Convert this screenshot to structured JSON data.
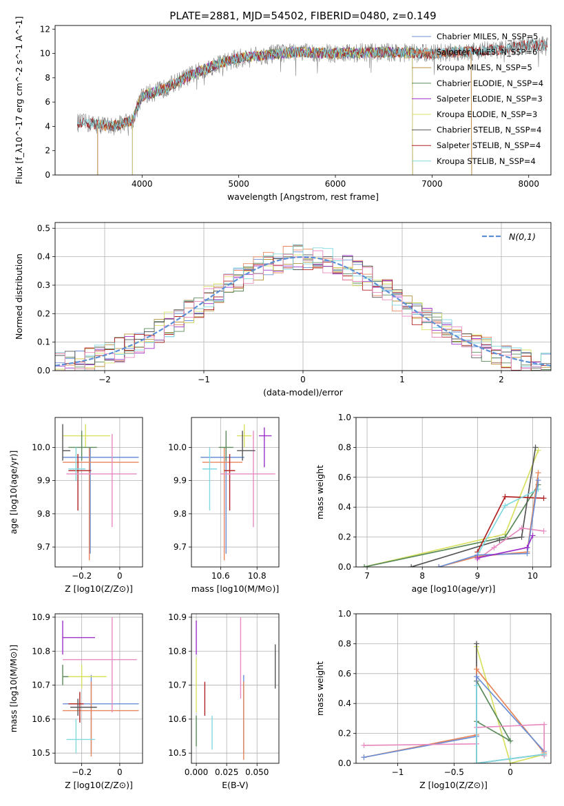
{
  "title": "PLATE=2881, MJD=54502, FIBERID=0480, z=0.149",
  "colors": {
    "chabrier_miles": "#6b8fd6",
    "salpeter_miles": "#e8855a",
    "kroupa_miles": "#b8923a",
    "chabrier_elodie": "#5a8a5a",
    "salpeter_elodie": "#9b30c8",
    "kroupa_elodie": "#d8e060",
    "chabrier_stelib": "#555555",
    "salpeter_stelib": "#b02020",
    "kroupa_stelib": "#80d8e0",
    "pink": "#e88ac0",
    "orange": "#e87a30",
    "gauss": "#5b8fd6"
  },
  "chart_data": [
    {
      "id": "spectrum",
      "type": "line",
      "xlabel": "wavelength [Angstrom, rest frame]",
      "ylabel": "Flux [f_λ10^-17 erg cm^-2 s^-1 A^-1]",
      "xlim": [
        3100,
        8230
      ],
      "ylim": [
        0,
        12.3
      ],
      "xticks": [
        4000,
        5000,
        6000,
        7000,
        8000
      ],
      "yticks": [
        0,
        2,
        4,
        6,
        8,
        10,
        12
      ],
      "legend": [
        {
          "label": "Chabrier MILES, N_SSP=5",
          "color_key": "chabrier_miles"
        },
        {
          "label": "Salpeter MILES, N_SSP=6",
          "color_key": "salpeter_miles"
        },
        {
          "label": "Kroupa MILES, N_SSP=5",
          "color_key": "kroupa_miles"
        },
        {
          "label": "Chabrier ELODIE, N_SSP=4",
          "color_key": "chabrier_elodie"
        },
        {
          "label": "Salpeter ELODIE, N_SSP=3",
          "color_key": "salpeter_elodie"
        },
        {
          "label": "Kroupa ELODIE, N_SSP=3",
          "color_key": "kroupa_elodie"
        },
        {
          "label": "Chabrier STELIB, N_SSP=4",
          "color_key": "chabrier_stelib"
        },
        {
          "label": "Salpeter STELIB, N_SSP=4",
          "color_key": "salpeter_stelib"
        },
        {
          "label": "Kroupa STELIB, N_SSP=4",
          "color_key": "kroupa_stelib"
        }
      ],
      "continuum": [
        [
          3330,
          4.3
        ],
        [
          3500,
          4.2
        ],
        [
          3700,
          4.0
        ],
        [
          3900,
          4.5
        ],
        [
          4000,
          6.5
        ],
        [
          4200,
          7.0
        ],
        [
          4500,
          8.2
        ],
        [
          4800,
          9.2
        ],
        [
          5000,
          9.6
        ],
        [
          5300,
          9.9
        ],
        [
          5600,
          10.1
        ],
        [
          6000,
          10.0
        ],
        [
          6500,
          10.1
        ],
        [
          7000,
          10.0
        ],
        [
          7400,
          10.2
        ],
        [
          7700,
          10.3
        ],
        [
          8000,
          10.7
        ],
        [
          8200,
          10.6
        ]
      ]
    },
    {
      "id": "residuals",
      "type": "line",
      "xlabel": "(data-model)/error",
      "ylabel": "Normed distribution",
      "xlim": [
        -2.5,
        2.5
      ],
      "ylim": [
        0,
        0.52
      ],
      "xticks": [
        -2,
        -1,
        0,
        1,
        2
      ],
      "yticks": [
        0.0,
        0.1,
        0.2,
        0.3,
        0.4,
        0.5
      ],
      "legend_label": "N(0,1)",
      "bin_width": 0.1
    },
    {
      "id": "age_vs_Z",
      "type": "scatter",
      "xlabel": "Z [log10(Z/Z⊙)]",
      "ylabel": "age  [log10(age/yr)]",
      "xlim": [
        -0.34,
        0.12
      ],
      "ylim": [
        9.64,
        10.09
      ],
      "xticks": [
        -0.2,
        0.0
      ],
      "yticks": [
        9.7,
        9.8,
        9.9,
        10.0
      ],
      "points": [
        {
          "x": -0.155,
          "y": 9.97,
          "xlo": -0.3,
          "xhi": 0.1,
          "ylo": 9.68,
          "yhi": 10.0,
          "c": "chabrier_miles"
        },
        {
          "x": -0.16,
          "y": 9.955,
          "xlo": -0.3,
          "xhi": 0.1,
          "ylo": 9.66,
          "yhi": 10.0,
          "c": "salpeter_miles"
        },
        {
          "x": -0.18,
          "y": 10.035,
          "xlo": -0.3,
          "xhi": -0.05,
          "ylo": 10.0,
          "yhi": 10.07,
          "c": "kroupa_elodie"
        },
        {
          "x": -0.2,
          "y": 10.0,
          "xlo": -0.27,
          "xhi": -0.12,
          "ylo": 9.96,
          "yhi": 10.05,
          "c": "chabrier_elodie"
        },
        {
          "x": -0.22,
          "y": 9.93,
          "xlo": -0.27,
          "xhi": -0.15,
          "ylo": 9.81,
          "yhi": 9.98,
          "c": "salpeter_stelib"
        },
        {
          "x": -0.23,
          "y": 9.935,
          "xlo": -0.27,
          "xhi": -0.18,
          "ylo": 9.9,
          "yhi": 10.0,
          "c": "kroupa_stelib"
        },
        {
          "x": -0.04,
          "y": 9.92,
          "xlo": -0.28,
          "xhi": 0.09,
          "ylo": 9.76,
          "yhi": 10.04,
          "c": "pink"
        },
        {
          "x": -0.3,
          "y": 9.99,
          "xlo": -0.3,
          "xhi": -0.26,
          "ylo": 9.96,
          "yhi": 10.07,
          "c": "chabrier_stelib"
        }
      ]
    },
    {
      "id": "age_vs_mass",
      "type": "scatter",
      "xlabel": "mass [log10(M/M⊙)]",
      "ylabel": "",
      "xlim": [
        10.44,
        10.92
      ],
      "ylim": [
        9.64,
        10.09
      ],
      "xticks": [
        10.6,
        10.8
      ],
      "yticks": [
        9.7,
        9.8,
        9.9,
        10.0
      ],
      "points": [
        {
          "x": 10.63,
          "y": 9.97,
          "xlo": 10.49,
          "xhi": 10.73,
          "ylo": 9.68,
          "yhi": 10.0,
          "c": "chabrier_miles"
        },
        {
          "x": 10.62,
          "y": 9.955,
          "xlo": 10.5,
          "xhi": 10.72,
          "ylo": 9.66,
          "yhi": 10.0,
          "c": "salpeter_miles"
        },
        {
          "x": 10.73,
          "y": 10.035,
          "xlo": 10.69,
          "xhi": 10.77,
          "ylo": 10.0,
          "yhi": 10.07,
          "c": "kroupa_elodie"
        },
        {
          "x": 10.63,
          "y": 10.0,
          "xlo": 10.59,
          "xhi": 10.67,
          "ylo": 9.96,
          "yhi": 10.05,
          "c": "chabrier_elodie"
        },
        {
          "x": 10.65,
          "y": 9.93,
          "xlo": 10.62,
          "xhi": 10.68,
          "ylo": 9.81,
          "yhi": 9.98,
          "c": "salpeter_stelib"
        },
        {
          "x": 10.54,
          "y": 9.935,
          "xlo": 10.5,
          "xhi": 10.58,
          "ylo": 9.81,
          "yhi": 10.0,
          "c": "kroupa_stelib"
        },
        {
          "x": 10.78,
          "y": 9.92,
          "xlo": 10.6,
          "xhi": 10.9,
          "ylo": 9.76,
          "yhi": 10.05,
          "c": "pink"
        },
        {
          "x": 10.84,
          "y": 10.035,
          "xlo": 10.81,
          "xhi": 10.88,
          "ylo": 9.94,
          "yhi": 10.06,
          "c": "salpeter_elodie"
        },
        {
          "x": 10.72,
          "y": 9.99,
          "xlo": 10.69,
          "xhi": 10.79,
          "ylo": 9.96,
          "yhi": 10.05,
          "c": "chabrier_stelib"
        }
      ]
    },
    {
      "id": "massweight_vs_age",
      "type": "line",
      "xlabel": "age  [log10(age/yr)]",
      "ylabel": "mass weight",
      "xlim": [
        6.8,
        10.33
      ],
      "ylim": [
        0,
        1.0
      ],
      "xticks": [
        7,
        8,
        9,
        10
      ],
      "yticks": [
        0.0,
        0.2,
        0.4,
        0.6,
        0.8,
        1.0
      ],
      "series": [
        {
          "c": "kroupa_elodie",
          "pts": [
            [
              6.95,
              0.0
            ],
            [
              9.5,
              0.22
            ],
            [
              10.1,
              0.78
            ]
          ]
        },
        {
          "c": "chabrier_elodie",
          "pts": [
            [
              6.95,
              0.0
            ],
            [
              9.5,
              0.2
            ],
            [
              10.1,
              0.55
            ]
          ]
        },
        {
          "c": "chabrier_stelib",
          "pts": [
            [
              7.8,
              0.0
            ],
            [
              9.4,
              0.18
            ],
            [
              9.8,
              0.2
            ],
            [
              10.05,
              0.8
            ]
          ]
        },
        {
          "c": "salpeter_stelib",
          "pts": [
            [
              9.0,
              0.1
            ],
            [
              9.5,
              0.47
            ],
            [
              10.2,
              0.46
            ]
          ]
        },
        {
          "c": "kroupa_stelib",
          "pts": [
            [
              9.0,
              0.08
            ],
            [
              9.5,
              0.41
            ],
            [
              10.1,
              0.52
            ]
          ]
        },
        {
          "c": "pink",
          "pts": [
            [
              9.0,
              0.05
            ],
            [
              9.3,
              0.13
            ],
            [
              9.8,
              0.26
            ],
            [
              10.2,
              0.24
            ]
          ]
        },
        {
          "c": "salpeter_miles",
          "pts": [
            [
              8.3,
              0.0
            ],
            [
              9.0,
              0.07
            ],
            [
              9.9,
              0.1
            ],
            [
              10.1,
              0.63
            ]
          ]
        },
        {
          "c": "chabrier_miles",
          "pts": [
            [
              8.3,
              0.0
            ],
            [
              9.0,
              0.08
            ],
            [
              9.9,
              0.09
            ],
            [
              10.1,
              0.58
            ]
          ]
        },
        {
          "c": "salpeter_elodie",
          "pts": [
            [
              9.0,
              0.06
            ],
            [
              9.9,
              0.13
            ],
            [
              10.0,
              0.21
            ]
          ]
        }
      ]
    },
    {
      "id": "mass_vs_Z",
      "type": "scatter",
      "xlabel": "Z [log10(Z/Z⊙)]",
      "ylabel": "mass [log10(M/M⊙)]",
      "xlim": [
        -0.34,
        0.12
      ],
      "ylim": [
        10.47,
        10.91
      ],
      "xticks": [
        -0.2,
        0.0
      ],
      "yticks": [
        10.5,
        10.6,
        10.7,
        10.8,
        10.9
      ],
      "points": [
        {
          "x": -0.15,
          "y": 10.645,
          "xlo": -0.3,
          "xhi": 0.1,
          "ylo": 10.5,
          "yhi": 10.73,
          "c": "chabrier_miles"
        },
        {
          "x": -0.15,
          "y": 10.625,
          "xlo": -0.3,
          "xhi": 0.1,
          "ylo": 10.49,
          "yhi": 10.71,
          "c": "salpeter_miles"
        },
        {
          "x": -0.2,
          "y": 10.725,
          "xlo": -0.3,
          "xhi": -0.07,
          "ylo": 10.69,
          "yhi": 10.76,
          "c": "kroupa_elodie"
        },
        {
          "x": -0.3,
          "y": 10.84,
          "xlo": -0.3,
          "xhi": -0.13,
          "ylo": 10.79,
          "yhi": 10.89,
          "c": "salpeter_elodie"
        },
        {
          "x": -0.3,
          "y": 10.725,
          "xlo": -0.3,
          "xhi": -0.27,
          "ylo": 10.7,
          "yhi": 10.76,
          "c": "chabrier_elodie"
        },
        {
          "x": -0.21,
          "y": 10.645,
          "xlo": -0.27,
          "xhi": -0.19,
          "ylo": 10.59,
          "yhi": 10.68,
          "c": "salpeter_stelib"
        },
        {
          "x": -0.23,
          "y": 10.54,
          "xlo": -0.28,
          "xhi": -0.13,
          "ylo": 10.5,
          "yhi": 10.6,
          "c": "kroupa_stelib"
        },
        {
          "x": -0.04,
          "y": 10.775,
          "xlo": -0.3,
          "xhi": 0.09,
          "ylo": 10.62,
          "yhi": 10.9,
          "c": "pink"
        },
        {
          "x": -0.22,
          "y": 10.635,
          "xlo": -0.26,
          "xhi": -0.12,
          "ylo": 10.61,
          "yhi": 10.66,
          "c": "chabrier_stelib"
        }
      ]
    },
    {
      "id": "mass_vs_EBV",
      "type": "scatter",
      "xlabel": "E(B-V)",
      "ylabel": "",
      "xlim": [
        -0.004,
        0.068
      ],
      "ylim": [
        10.47,
        10.91
      ],
      "xticks": [
        0.0,
        0.025,
        0.05
      ],
      "xtick_labels": [
        "0.000",
        "0.025",
        "0.050"
      ],
      "yticks": [
        10.5,
        10.6,
        10.7,
        10.8,
        10.9
      ],
      "points": [
        {
          "x": 0.0,
          "y": 10.84,
          "ylo": 10.79,
          "yhi": 10.89,
          "c": "salpeter_elodie"
        },
        {
          "x": 0.0,
          "y": 10.72,
          "ylo": 10.62,
          "yhi": 10.78,
          "c": "kroupa_elodie"
        },
        {
          "x": 0.0,
          "y": 10.58,
          "ylo": 10.52,
          "yhi": 10.61,
          "c": "chabrier_elodie"
        },
        {
          "x": 0.007,
          "y": 10.66,
          "ylo": 10.61,
          "yhi": 10.71,
          "c": "salpeter_stelib"
        },
        {
          "x": 0.013,
          "y": 10.56,
          "ylo": 10.51,
          "yhi": 10.61,
          "c": "kroupa_stelib"
        },
        {
          "x": 0.0365,
          "y": 10.79,
          "ylo": 10.66,
          "yhi": 10.9,
          "c": "pink"
        },
        {
          "x": 0.039,
          "y": 10.62,
          "ylo": 10.5,
          "yhi": 10.73,
          "c": "chabrier_miles"
        },
        {
          "x": 0.039,
          "y": 10.6,
          "ylo": 10.48,
          "yhi": 10.71,
          "c": "salpeter_miles"
        },
        {
          "x": 0.065,
          "y": 10.75,
          "ylo": 10.69,
          "yhi": 10.82,
          "c": "chabrier_stelib"
        }
      ]
    },
    {
      "id": "massweight_vs_Z",
      "type": "line",
      "xlabel": "Z [log10(Z/Z⊙)]",
      "ylabel": "mass weight",
      "xlim": [
        -1.37,
        0.36
      ],
      "ylim": [
        0,
        1.0
      ],
      "xticks": [
        -1.0,
        -0.5,
        0.0
      ],
      "yticks": [
        0.0,
        0.2,
        0.4,
        0.6,
        0.8,
        1.0
      ],
      "series": [
        {
          "c": "kroupa_elodie",
          "pts": [
            [
              -0.3,
              0.78
            ],
            [
              0.0,
              0.0
            ],
            [
              0.3,
              0.06
            ]
          ]
        },
        {
          "c": "chabrier_elodie",
          "pts": [
            [
              -0.3,
              0.55
            ],
            [
              0.0,
              0.15
            ],
            [
              -0.3,
              0.28
            ]
          ]
        },
        {
          "c": "chabrier_stelib",
          "pts": [
            [
              -0.3,
              0.8
            ],
            [
              -0.3,
              0.0
            ],
            [
              0.3,
              0.06
            ]
          ]
        },
        {
          "c": "salpeter_miles",
          "pts": [
            [
              -1.3,
              0.04
            ],
            [
              -0.3,
              0.19
            ],
            [
              -0.3,
              0.63
            ],
            [
              0.3,
              0.07
            ]
          ]
        },
        {
          "c": "chabrier_miles",
          "pts": [
            [
              -1.3,
              0.04
            ],
            [
              -0.3,
              0.18
            ],
            [
              -0.3,
              0.58
            ],
            [
              0.3,
              0.08
            ]
          ]
        },
        {
          "c": "pink",
          "pts": [
            [
              -1.3,
              0.12
            ],
            [
              -0.3,
              0.13
            ],
            [
              -0.3,
              0.24
            ],
            [
              0.3,
              0.26
            ],
            [
              0.3,
              0.05
            ]
          ]
        },
        {
          "c": "kroupa_stelib",
          "pts": [
            [
              -0.3,
              0.52
            ],
            [
              -0.3,
              0.0
            ],
            [
              0.0,
              0.03
            ],
            [
              0.3,
              0.06
            ]
          ]
        }
      ]
    }
  ]
}
